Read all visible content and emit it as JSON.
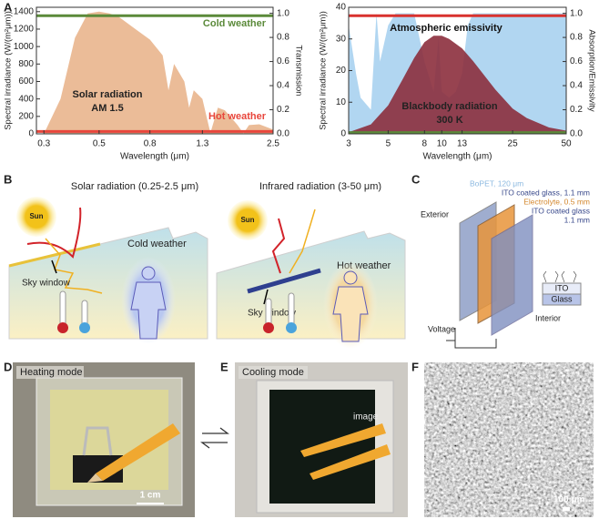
{
  "panel_labels": [
    "A",
    "B",
    "C",
    "D",
    "E",
    "F"
  ],
  "chart_data": [
    {
      "type": "area",
      "xlabel": "Wavelength (μm)",
      "ylabel": "Spectral irradiance (W/(m²μm))",
      "y2label": "Transmission",
      "xscale": "log",
      "xlim": [
        0.28,
        2.5
      ],
      "xticks": [
        0.3,
        0.5,
        0.8,
        1.3,
        2.5
      ],
      "ylim": [
        0,
        1450
      ],
      "yticks": [
        0,
        200,
        400,
        600,
        800,
        1000,
        1200,
        1400
      ],
      "y2lim": [
        0,
        1.05
      ],
      "y2ticks": [
        {
          "value": 0,
          "label": "0.0"
        },
        0.2,
        0.4,
        0.6,
        0.8,
        {
          "value": 1,
          "label": "1.0"
        }
      ],
      "annotations": [
        "Solar radiation",
        "AM 1.5"
      ],
      "series": [
        {
          "type": "area",
          "color": "#e9b58d",
          "x": [
            0.3,
            0.35,
            0.4,
            0.45,
            0.5,
            0.55,
            0.6,
            0.7,
            0.8,
            0.9,
            0.95,
            1.0,
            1.1,
            1.15,
            1.2,
            1.3,
            1.4,
            1.5,
            1.6,
            1.8,
            1.9,
            2.0,
            2.2,
            2.5
          ],
          "values": [
            0,
            400,
            1100,
            1380,
            1400,
            1380,
            1340,
            1200,
            1080,
            900,
            500,
            800,
            600,
            300,
            500,
            400,
            10,
            300,
            270,
            100,
            5,
            100,
            110,
            50
          ]
        },
        {
          "type": "line",
          "name": "Cold weather",
          "color": "#5b8a3a",
          "axis": "y2",
          "x": [
            0.28,
            2.5
          ],
          "values": [
            0.98,
            0.98
          ]
        },
        {
          "type": "line",
          "name": "Hot weather",
          "color": "#e8463c",
          "axis": "y2",
          "x": [
            0.28,
            2.5
          ],
          "values": [
            0.02,
            0.02
          ]
        }
      ]
    },
    {
      "type": "area",
      "xlabel": "Wavelength (μm)",
      "ylabel": "Spectral irradiance (W/(m²μm))",
      "y2label": "Absorption/Emissivity",
      "xscale": "log",
      "xlim": [
        3,
        50
      ],
      "xticks": [
        3,
        5,
        8,
        10,
        13,
        25,
        50
      ],
      "ylim": [
        0,
        40
      ],
      "yticks": [
        0,
        10,
        20,
        30,
        40
      ],
      "y2lim": [
        0,
        1.05
      ],
      "y2ticks": [
        {
          "value": 0,
          "label": "0.0"
        },
        0.2,
        0.4,
        0.6,
        0.8,
        {
          "value": 1,
          "label": "1.0"
        }
      ],
      "annotations": [
        "Blackbody radiation",
        "300 K"
      ],
      "series": [
        {
          "type": "area",
          "name": "Atmospheric emissivity",
          "color": "#a9d1f0",
          "axis": "y2",
          "x": [
            3,
            3.3,
            3.5,
            4,
            4.3,
            4.5,
            5,
            5.5,
            6,
            7,
            8,
            9,
            9.6,
            10,
            11,
            12,
            13,
            14,
            15,
            17,
            20,
            25,
            30,
            40,
            50
          ],
          "values": [
            0.9,
            0.5,
            0.3,
            0.2,
            1.0,
            0.6,
            0.9,
            1.0,
            1.0,
            1.0,
            0.6,
            0.35,
            0.8,
            0.35,
            0.3,
            0.35,
            0.5,
            0.9,
            1.0,
            1.0,
            1.0,
            1.0,
            1.0,
            1.0,
            1.0
          ]
        },
        {
          "type": "area",
          "color": "#8c2f3d",
          "x": [
            3,
            4,
            5,
            6,
            7,
            8,
            9,
            10,
            11,
            13,
            15,
            20,
            25,
            30,
            40,
            50
          ],
          "values": [
            0.5,
            3,
            9,
            17,
            24,
            29,
            31,
            31,
            30,
            27,
            23,
            14,
            8,
            5,
            2,
            1
          ]
        },
        {
          "type": "line",
          "color": "#d9322e",
          "axis": "y2",
          "x": [
            3,
            50
          ],
          "values": [
            0.98,
            0.98
          ]
        },
        {
          "type": "line",
          "color": "#5b8a3a",
          "axis": "y2",
          "x": [
            3,
            50
          ],
          "values": [
            0.01,
            0.01
          ]
        }
      ]
    }
  ],
  "panel_b": {
    "left": {
      "title": "Solar radiation (0.25-2.5 μm)",
      "sun": "Sun",
      "weather": "Cold weather",
      "window": "Sky window"
    },
    "right": {
      "title": "Infrared radiation (3-50 μm)",
      "sun": "Sun",
      "weather": "Hot weather",
      "window": "Sky window"
    }
  },
  "panel_c": {
    "layers": [
      "BoPET, 120 μm",
      "ITO coated glass, 1.1 mm",
      "Electrolyte, 0.5 mm",
      "ITO coated glass",
      "1.1 mm"
    ],
    "exterior": "Exterior",
    "interior": "Interior",
    "voltage": "Voltage",
    "inset": [
      "ITO",
      "Glass"
    ]
  },
  "panel_d": {
    "mode": "Heating mode",
    "scale": "1 cm"
  },
  "panel_e": {
    "mode": "Cooling mode",
    "watermark": "image"
  },
  "panel_f": {
    "scale": "100 μm"
  }
}
